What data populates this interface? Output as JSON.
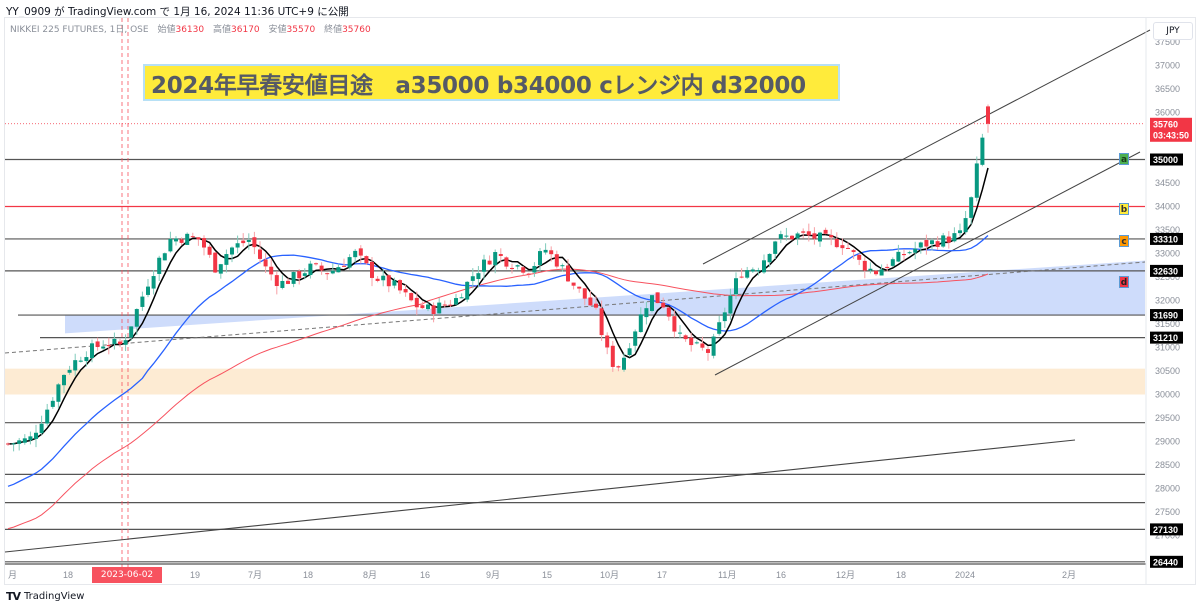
{
  "header": {
    "published_line": "YY_0909 が TradingView.com で 1月 16, 2024 11:36 UTC+9 に公開"
  },
  "legend": {
    "symbol": "NIKKEI 225 FUTURES, 1日, OSE",
    "open_label": "始値",
    "open": "36130",
    "high_label": "高値",
    "high": "36170",
    "low_label": "安値",
    "low": "35570",
    "close_label": "終値",
    "close": "35760"
  },
  "annotation": {
    "title": "2024年早春安値目途　a35000 b34000 cレンジ内 d32000",
    "colors": {
      "background": "#ffeb3b",
      "border": "#b7e0f5",
      "text": "#555a66"
    }
  },
  "price_axis": {
    "currency": "JPY",
    "ticks": [
      "37500",
      "37000",
      "36500",
      "36000",
      "35500",
      "35000",
      "34500",
      "34000",
      "33500",
      "33000",
      "32500",
      "32000",
      "31500",
      "31000",
      "30500",
      "30000",
      "29500",
      "29000",
      "28500",
      "28000",
      "27500",
      "27000"
    ],
    "current_price": {
      "value": "35760",
      "countdown": "03:43:50",
      "color": "#f23645"
    },
    "level_tags": [
      "35000",
      "33310",
      "32630",
      "31690",
      "31210",
      "27130",
      "26440"
    ]
  },
  "time_axis": {
    "labels": [
      "月",
      "18",
      "19",
      "7月",
      "18",
      "8月",
      "16",
      "9月",
      "15",
      "10月",
      "17",
      "11月",
      "16",
      "12月",
      "18",
      "2024",
      "2月"
    ],
    "crosshair_date": "2023-06-02 (金)"
  },
  "markers": [
    {
      "label": "a",
      "price": 35000,
      "color": "#4caf50"
    },
    {
      "label": "b",
      "price": 34000,
      "color": "#ffeb3b"
    },
    {
      "label": "c",
      "price": 33310,
      "color": "#ff9800"
    },
    {
      "label": "d",
      "price": 32000,
      "color": "#f23645"
    }
  ],
  "footer": {
    "brand": "TradingView",
    "logo": "TV"
  },
  "chart_data": {
    "type": "line",
    "title": "NIKKEI 225 FUTURES, 1日, OSE",
    "subtitle": "2024年早春安値目途　a35000 b34000 cレンジ内 d32000",
    "xlabel": "",
    "ylabel": "JPY",
    "ylim": [
      26200,
      37900
    ],
    "x": [
      "2023-05",
      "2023-05-18",
      "2023-06",
      "2023-06-19",
      "2023-07",
      "2023-07-18",
      "2023-08",
      "2023-08-16",
      "2023-09",
      "2023-09-15",
      "2023-10",
      "2023-10-17",
      "2023-11",
      "2023-11-16",
      "2023-12",
      "2023-12-18",
      "2024-01",
      "2024-01-16"
    ],
    "series": [
      {
        "name": "Close (approx.)",
        "color": "#089981",
        "values": [
          29200,
          30500,
          31300,
          33200,
          32900,
          32300,
          32500,
          31900,
          32600,
          32800,
          31700,
          31100,
          31000,
          33400,
          33100,
          32900,
          33400,
          35760
        ]
      },
      {
        "name": "MA short (black)",
        "color": "#000000",
        "values": [
          29000,
          30300,
          31200,
          33000,
          33100,
          32400,
          32600,
          31900,
          32500,
          32900,
          31500,
          31200,
          31000,
          33200,
          33200,
          32700,
          33300,
          35200
        ]
      },
      {
        "name": "MA mid (blue)",
        "color": "#2962ff",
        "values": [
          28200,
          29000,
          30200,
          32200,
          32900,
          32800,
          32600,
          32400,
          32400,
          32700,
          32300,
          31900,
          31700,
          32100,
          32700,
          32900,
          33000,
          33500
        ]
      },
      {
        "name": "MA long (red)",
        "color": "#f7525f",
        "values": [
          27400,
          28000,
          28700,
          29700,
          30600,
          31400,
          32000,
          32500,
          32700,
          32800,
          32700,
          32500,
          32300,
          32300,
          32400,
          32500,
          32600,
          32700
        ]
      }
    ],
    "horizontal_levels": [
      35000,
      34000,
      33310,
      32630,
      31690,
      31210,
      29400,
      28300,
      27700,
      27130,
      26440
    ],
    "zones": [
      {
        "name": "blue zone",
        "from": 31690,
        "to": 32630,
        "color": "#c9d8fb"
      },
      {
        "name": "orange zone",
        "from": 30000,
        "to": 30550,
        "color": "#fdebd3"
      }
    ],
    "annotations": [
      "a 35000",
      "b 34000",
      "c レンジ内",
      "d 32000",
      "crosshair 2023-06-02 (金)"
    ],
    "grid": false,
    "legend_position": "top-left"
  }
}
